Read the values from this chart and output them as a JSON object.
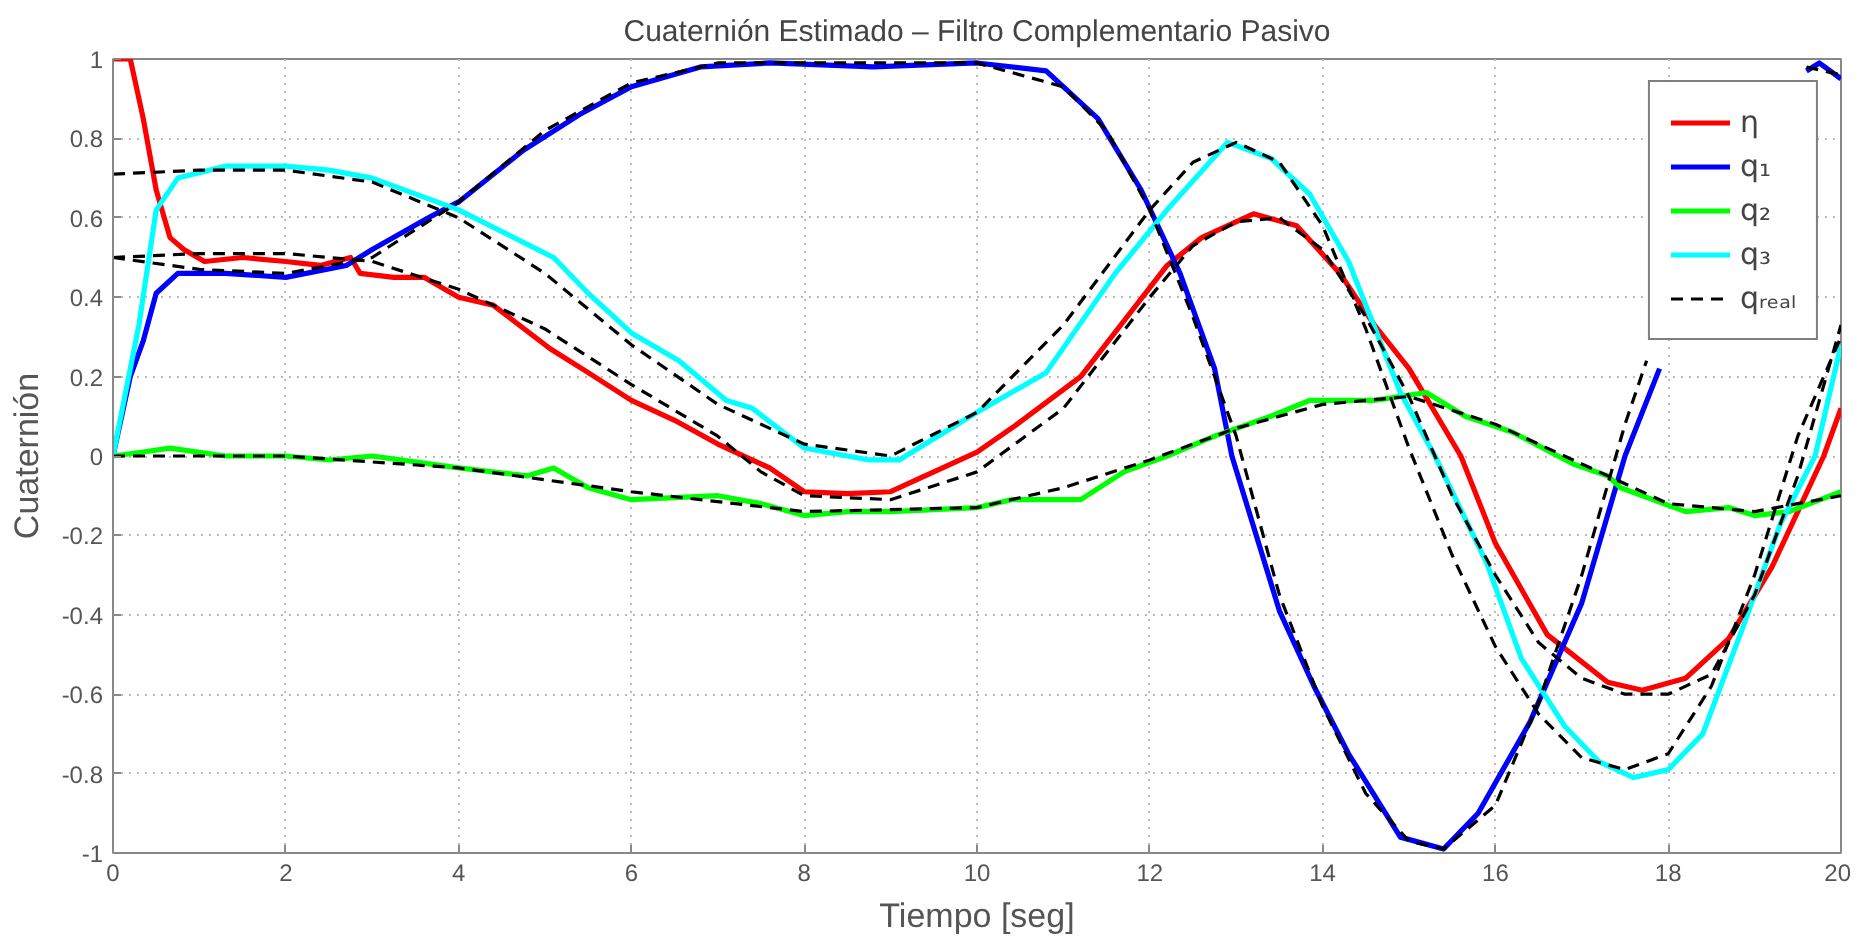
{
  "chart_data": {
    "type": "line",
    "title": "Cuaternión Estimado – Filtro Complementario Pasivo",
    "xlabel": "Tiempo [seg]",
    "ylabel": "Cuaternión",
    "xlim": [
      0,
      20
    ],
    "ylim": [
      -1,
      1
    ],
    "xticks": [
      0,
      2,
      4,
      6,
      8,
      10,
      12,
      14,
      16,
      18,
      20
    ],
    "yticks": [
      -1,
      -0.8,
      -0.6,
      -0.4,
      -0.2,
      0,
      0.2,
      0.4,
      0.6,
      0.8,
      1
    ],
    "grid": true,
    "legend": "top right",
    "marker": "none",
    "series": [
      {
        "name": "η",
        "color": "#ff0000",
        "line_style": "solid",
        "x": [
          0,
          0.2,
          0.35,
          0.5,
          0.66,
          0.82,
          1.06,
          1.5,
          2,
          2.4,
          2.75,
          2.86,
          3.25,
          3.6,
          4,
          4.4,
          5.06,
          5.5,
          6,
          6.5,
          7,
          7.6,
          8,
          8.5,
          9,
          9.5,
          10,
          10.4,
          11.2,
          11.7,
          12.2,
          12.6,
          13.2,
          13.7,
          14.2,
          14.6,
          15,
          15.6,
          16,
          16.6,
          17.3,
          17.7,
          18.2,
          18.7,
          19.2,
          19.8,
          20
        ],
        "values": [
          1,
          1,
          0.85,
          0.67,
          0.55,
          0.52,
          0.49,
          0.5,
          0.49,
          0.48,
          0.5,
          0.46,
          0.45,
          0.45,
          0.4,
          0.38,
          0.27,
          0.21,
          0.14,
          0.09,
          0.03,
          -0.03,
          -0.09,
          -0.095,
          -0.09,
          -0.04,
          0.01,
          0.07,
          0.2,
          0.34,
          0.48,
          0.55,
          0.61,
          0.58,
          0.46,
          0.33,
          0.22,
          0.0,
          -0.22,
          -0.45,
          -0.57,
          -0.59,
          -0.56,
          -0.46,
          -0.28,
          0.0,
          0.12
        ]
      },
      {
        "name": "q₁",
        "color": "#0000ff",
        "line_style": "solid",
        "x": [
          0,
          0.2,
          0.35,
          0.5,
          0.75,
          1.3,
          2,
          2.7,
          3,
          3.65,
          4,
          4.75,
          5.4,
          6,
          6.8,
          7.6,
          8.8,
          10,
          10.8,
          11.4,
          11.9,
          12.35,
          12.75,
          12.95,
          13.5,
          13.9,
          14.3,
          14.9,
          15.4,
          15.8,
          16.4,
          17,
          17.5,
          17.9,
          18.6,
          19.6,
          19.75,
          20
        ],
        "values": [
          0,
          0.2,
          0.29,
          0.41,
          0.46,
          0.46,
          0.45,
          0.48,
          0.52,
          0.6,
          0.64,
          0.77,
          0.86,
          0.93,
          0.98,
          0.99,
          0.98,
          0.99,
          0.97,
          0.85,
          0.67,
          0.46,
          0.22,
          0,
          -0.39,
          -0.58,
          -0.75,
          -0.96,
          -0.99,
          -0.9,
          -0.67,
          -0.37,
          0.0,
          0.22,
          null,
          0.97,
          0.99,
          0.95
        ]
      },
      {
        "name": "q₂",
        "color": "#00ff00",
        "line_style": "solid",
        "x": [
          0,
          0.35,
          0.66,
          1.3,
          2,
          2.5,
          3,
          4,
          4.8,
          5.1,
          5.5,
          6,
          7,
          7.5,
          8,
          8.5,
          9,
          10,
          10.4,
          11.2,
          11.7,
          12.2,
          12.75,
          13.4,
          13.85,
          14.6,
          15.2,
          15.65,
          16.2,
          16.9,
          17.3,
          17.45,
          18.2,
          18.7,
          19,
          19.4,
          20
        ],
        "values": [
          0,
          0.01,
          0.02,
          0,
          0.0,
          -0.01,
          0,
          -0.03,
          -0.05,
          -0.03,
          -0.08,
          -0.11,
          -0.1,
          -0.12,
          -0.15,
          -0.14,
          -0.14,
          -0.13,
          -0.11,
          -0.11,
          -0.04,
          0.0,
          0.05,
          0.1,
          0.14,
          0.14,
          0.16,
          0.1,
          0.06,
          -0.02,
          -0.05,
          -0.08,
          -0.14,
          -0.13,
          -0.15,
          -0.14,
          -0.09
        ]
      },
      {
        "name": "q₃",
        "color": "#00ffff",
        "line_style": "solid",
        "x": [
          0,
          0.3,
          0.5,
          0.75,
          1.3,
          2,
          2.5,
          3,
          4,
          5.1,
          5.5,
          6,
          6.55,
          7.1,
          7.4,
          8,
          8.75,
          9.1,
          10,
          10.8,
          11.6,
          12.2,
          12.9,
          13.4,
          13.85,
          14.3,
          14.9,
          15.3,
          15.9,
          16.3,
          16.8,
          17.2,
          17.6,
          18,
          18.4,
          18.85,
          19.3,
          19.7,
          20
        ],
        "values": [
          0,
          0.33,
          0.62,
          0.7,
          0.73,
          0.73,
          0.72,
          0.7,
          0.62,
          0.5,
          0.41,
          0.31,
          0.24,
          0.14,
          0.12,
          0.02,
          -0.01,
          -0.01,
          0.11,
          0.21,
          0.46,
          0.62,
          0.79,
          0.75,
          0.66,
          0.49,
          0.16,
          0.0,
          -0.27,
          -0.51,
          -0.68,
          -0.77,
          -0.81,
          -0.79,
          -0.7,
          -0.44,
          -0.17,
          0.0,
          0.28
        ]
      },
      {
        "name": "qᵣₑₐₗ",
        "color": "#000000",
        "line_style": "dashed",
        "x": [
          0,
          1,
          2,
          3,
          4,
          5,
          6,
          7,
          7.5,
          8,
          9,
          10,
          11,
          12,
          12.5,
          13,
          13.5,
          14,
          14.5,
          15,
          15.5,
          16,
          16.5,
          17,
          17.5,
          18,
          18.5,
          19,
          19.5,
          20
        ],
        "values": [
          0.5,
          0.51,
          0.51,
          0.49,
          0.42,
          0.32,
          0.18,
          0.05,
          -0.04,
          -0.1,
          -0.11,
          -0.04,
          0.12,
          0.4,
          0.53,
          0.59,
          0.6,
          0.52,
          0.35,
          0.15,
          -0.1,
          -0.3,
          -0.47,
          -0.56,
          -0.6,
          -0.6,
          -0.55,
          -0.35,
          -0.05,
          0.33
        ]
      },
      {
        "color": "#000000",
        "line_style": "dashed",
        "x": [
          0,
          1,
          2,
          3,
          4,
          5,
          6,
          7,
          8,
          9,
          10,
          11,
          11.5,
          12,
          12.5,
          13,
          13.5,
          14,
          14.5,
          15,
          15.4,
          16,
          16.5,
          17,
          17.5,
          17.75,
          18.6,
          19.6,
          20
        ],
        "values": [
          0.5,
          0.47,
          0.46,
          0.5,
          0.64,
          0.82,
          0.94,
          0.99,
          0.99,
          0.99,
          0.99,
          0.93,
          0.82,
          0.62,
          0.35,
          0.05,
          -0.35,
          -0.63,
          -0.85,
          -0.97,
          -0.99,
          -0.88,
          -0.62,
          -0.3,
          0.08,
          0.24,
          null,
          0.98,
          0.96
        ]
      },
      {
        "color": "#000000",
        "line_style": "dashed",
        "x": [
          0,
          2,
          4,
          6,
          8,
          10,
          11,
          12,
          13,
          14,
          15,
          16,
          17,
          18,
          19,
          20
        ],
        "values": [
          0.0,
          0.0,
          -0.03,
          -0.09,
          -0.14,
          -0.13,
          -0.08,
          -0.01,
          0.07,
          0.13,
          0.15,
          0.08,
          -0.02,
          -0.12,
          -0.14,
          -0.1
        ]
      },
      {
        "color": "#000000",
        "line_style": "dashed",
        "x": [
          0,
          1,
          2,
          3,
          4,
          5,
          6,
          7,
          8,
          9,
          10,
          11,
          12,
          12.5,
          13,
          13.5,
          14,
          14.5,
          15,
          15.5,
          16,
          16.5,
          17,
          17.5,
          18,
          18.5,
          19,
          19.5,
          20
        ],
        "values": [
          0.71,
          0.72,
          0.72,
          0.69,
          0.6,
          0.46,
          0.28,
          0.13,
          0.03,
          0.0,
          0.11,
          0.33,
          0.62,
          0.74,
          0.79,
          0.74,
          0.58,
          0.32,
          0.02,
          -0.25,
          -0.48,
          -0.65,
          -0.76,
          -0.79,
          -0.75,
          -0.58,
          -0.3,
          0.05,
          0.3
        ]
      }
    ]
  }
}
